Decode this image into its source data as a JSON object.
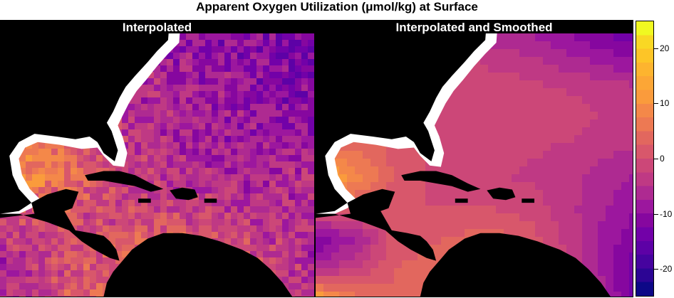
{
  "title": "Apparent Oxygen Utilization (μmol/kg) at Surface",
  "panels": [
    {
      "label": "Interpolated"
    },
    {
      "label": "Interpolated and Smoothed"
    }
  ],
  "colorbar": {
    "range": [
      -25,
      25
    ],
    "ticks": [
      {
        "value": 20,
        "label": "20"
      },
      {
        "value": 10,
        "label": "10"
      },
      {
        "value": 0,
        "label": "0"
      },
      {
        "value": -10,
        "label": "-10"
      },
      {
        "value": -20,
        "label": "-20"
      }
    ],
    "colors": [
      "#0d0887",
      "#2c0594",
      "#46039f",
      "#5d01a6",
      "#7201a8",
      "#86079f",
      "#9c179e",
      "#ae2a91",
      "#bf3984",
      "#cc4778",
      "#d8576b",
      "#e2675e",
      "#ed7953",
      "#f48849",
      "#fa9b3c",
      "#fca636",
      "#fdb42f",
      "#fdc527",
      "#f9d824",
      "#f0f921"
    ]
  },
  "chart_data": {
    "type": "heatmap",
    "title": "Apparent Oxygen Utilization (μmol/kg) at Surface",
    "zlim": [
      -25,
      25
    ],
    "panels": [
      {
        "label": "Interpolated",
        "field": [
          [
            -7,
            -8,
            -5,
            -6,
            -7,
            -9,
            -10,
            -9,
            -11,
            -12
          ],
          [
            -6,
            -4,
            -5,
            -6,
            -8,
            -9,
            -10,
            -11,
            -12,
            -13
          ],
          [
            -3,
            -1,
            -3,
            -4,
            -6,
            -8,
            -9,
            -10,
            -11,
            -12
          ],
          [
            0,
            2,
            -1,
            -3,
            -5,
            -7,
            -9,
            -10,
            -10,
            -11
          ],
          [
            3,
            6,
            2,
            -2,
            -4,
            -6,
            -8,
            -9,
            -9,
            -8
          ],
          [
            5,
            9,
            4,
            0,
            -3,
            -5,
            -6,
            -7,
            -6,
            -5
          ],
          [
            2,
            1,
            0,
            -2,
            -2,
            -2,
            -3,
            -4,
            -5,
            -6
          ],
          [
            -5,
            -2,
            0,
            1,
            2,
            3,
            0,
            -2,
            -4,
            -6
          ],
          [
            -8,
            -3,
            0,
            2,
            4,
            5,
            2,
            0,
            -3,
            -5
          ],
          [
            -6,
            -2,
            1,
            3,
            5,
            6,
            3,
            1,
            -2,
            -5
          ]
        ]
      },
      {
        "label": "Interpolated and Smoothed",
        "field": [
          [
            -8,
            -7,
            -6,
            -6,
            -7,
            -8,
            -9,
            -11,
            -14,
            -16
          ],
          [
            -5,
            -4,
            -2,
            -1,
            -2,
            -4,
            -5,
            -7,
            -9,
            -11
          ],
          [
            -2,
            -1,
            0,
            1,
            0,
            -1,
            -2,
            -3,
            -4,
            -5
          ],
          [
            1,
            2,
            0,
            -1,
            -1,
            -2,
            -2,
            0,
            -3,
            -5
          ],
          [
            4,
            5,
            2,
            0,
            -1,
            -2,
            -2,
            -3,
            -4,
            -5
          ],
          [
            15,
            9,
            3,
            0,
            -1,
            -2,
            -3,
            -4,
            -6,
            -8
          ],
          [
            2,
            1,
            1,
            0,
            0,
            0,
            -1,
            -4,
            -7,
            -10
          ],
          [
            -12,
            -8,
            0,
            2,
            3,
            4,
            1,
            -3,
            -8,
            -12
          ],
          [
            -6,
            -2,
            2,
            4,
            5,
            4,
            1,
            -2,
            -8,
            -14
          ],
          [
            14,
            6,
            3,
            5,
            6,
            5,
            3,
            0,
            -6,
            -14
          ]
        ]
      }
    ]
  }
}
